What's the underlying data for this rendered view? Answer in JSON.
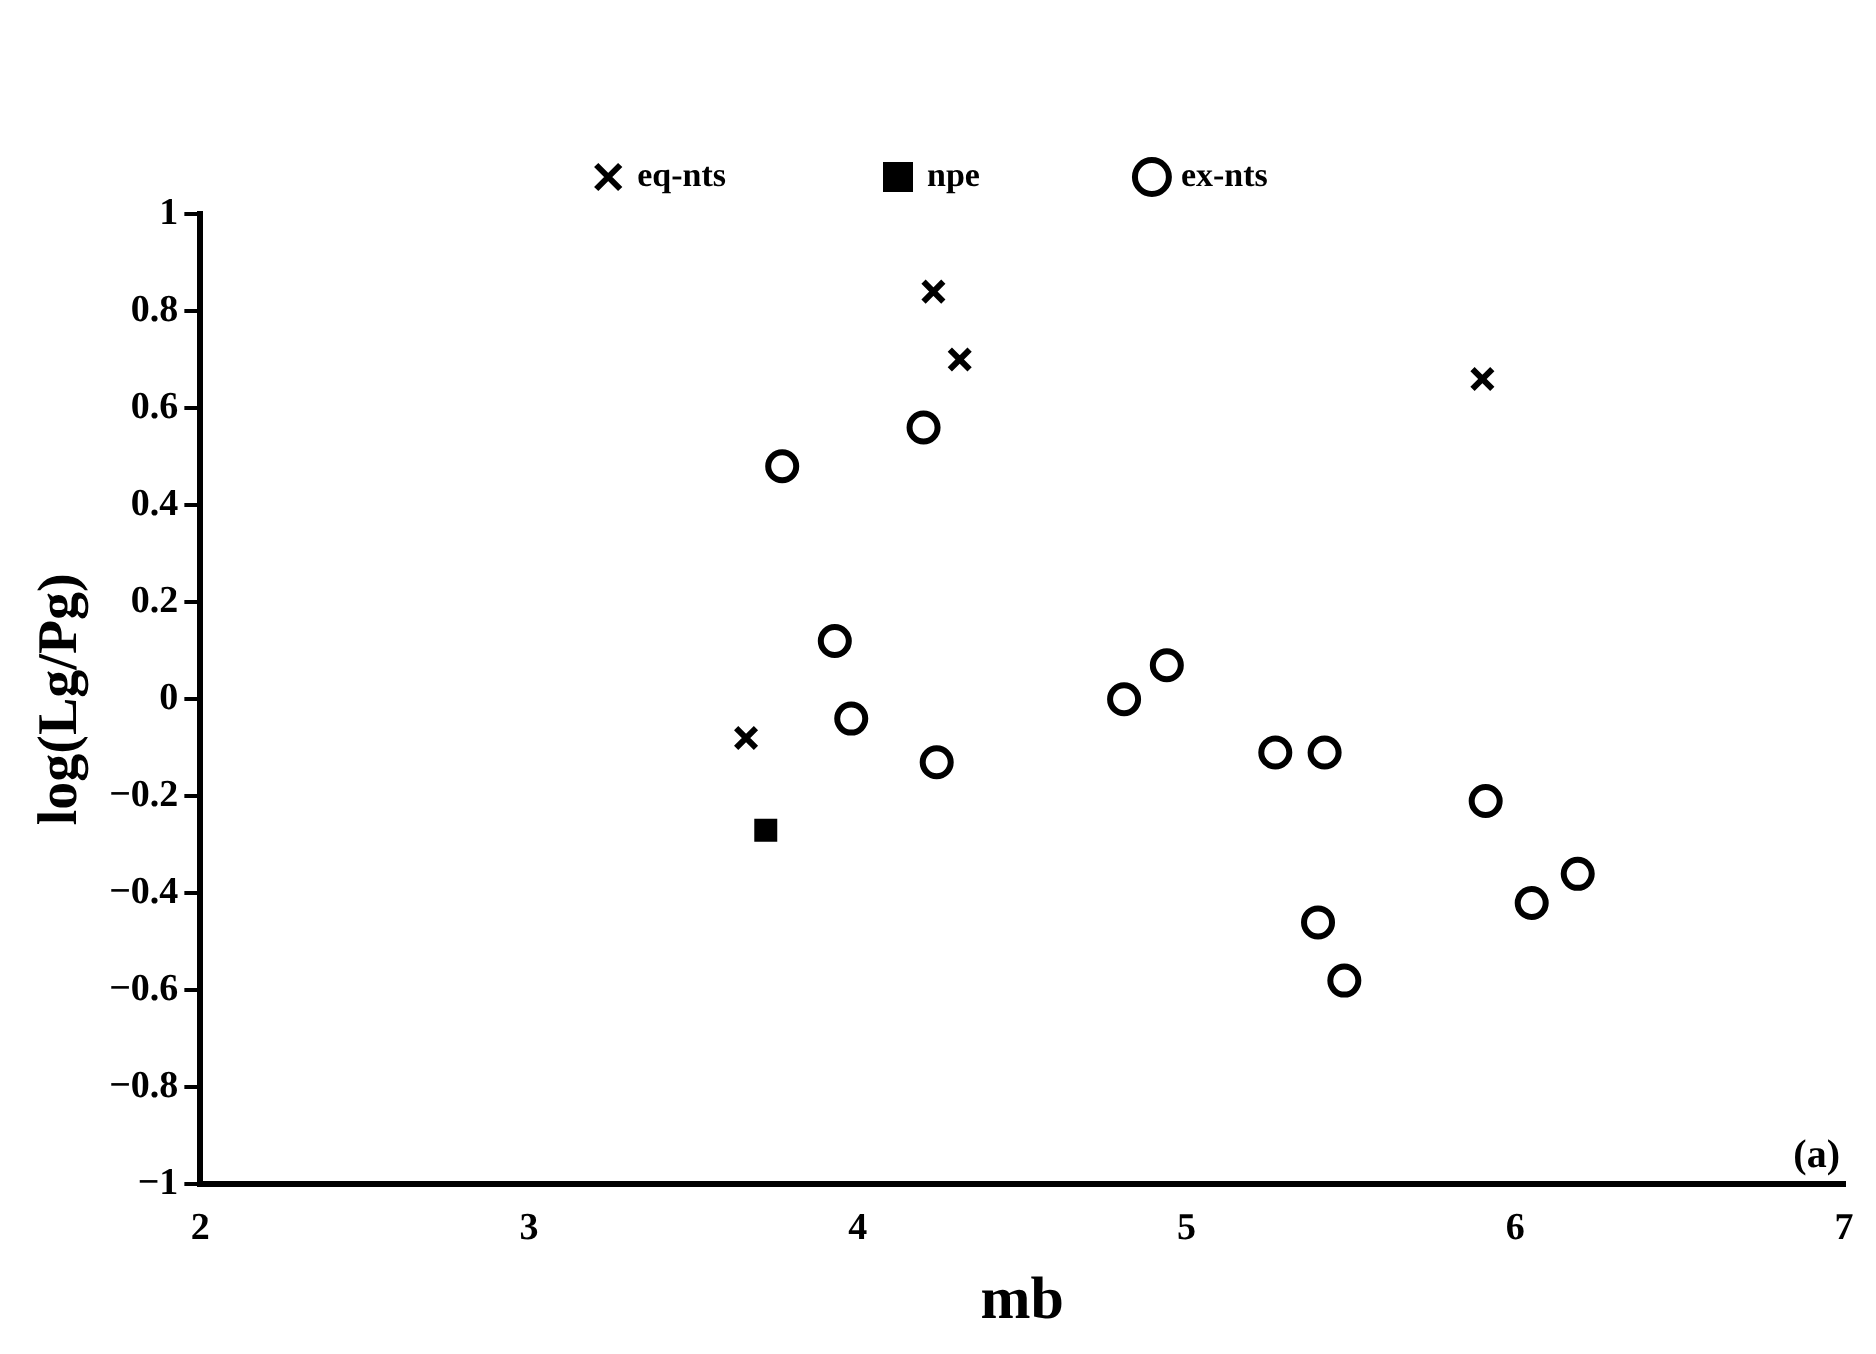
{
  "chart_data": {
    "type": "scatter",
    "xlabel": "mb",
    "ylabel": "log(Lg/Pg)",
    "xlim": [
      2,
      7
    ],
    "xticks": [
      2,
      3,
      4,
      5,
      6,
      7
    ],
    "ylim": [
      -1,
      1
    ],
    "yticks": [
      -1,
      -0.8,
      -0.6,
      -0.4,
      -0.2,
      0,
      0.2,
      0.4,
      0.6,
      0.8,
      1
    ],
    "grid": false,
    "legend": "top",
    "annotations": [
      "(a)"
    ],
    "series": [
      {
        "name": "eq-nts",
        "color": "#000000",
        "marker": "cross",
        "x": [
          4.23,
          4.31,
          3.66,
          5.9
        ],
        "values": [
          0.84,
          0.7,
          -0.08,
          0.66
        ]
      },
      {
        "name": "npe",
        "color": "#000000",
        "marker": "square",
        "x": [
          3.72
        ],
        "values": [
          -0.27
        ]
      },
      {
        "name": "ex-nts",
        "color": "#000000",
        "marker": "circle",
        "x": [
          4.2,
          3.77,
          3.93,
          4.94,
          4.81,
          3.98,
          4.24,
          5.27,
          5.42,
          5.91,
          6.19,
          6.05,
          5.4,
          5.48
        ],
        "values": [
          0.56,
          0.48,
          0.12,
          0.07,
          0,
          -0.04,
          -0.13,
          -0.11,
          -0.11,
          -0.21,
          -0.36,
          -0.42,
          -0.46,
          -0.58
        ]
      }
    ]
  }
}
